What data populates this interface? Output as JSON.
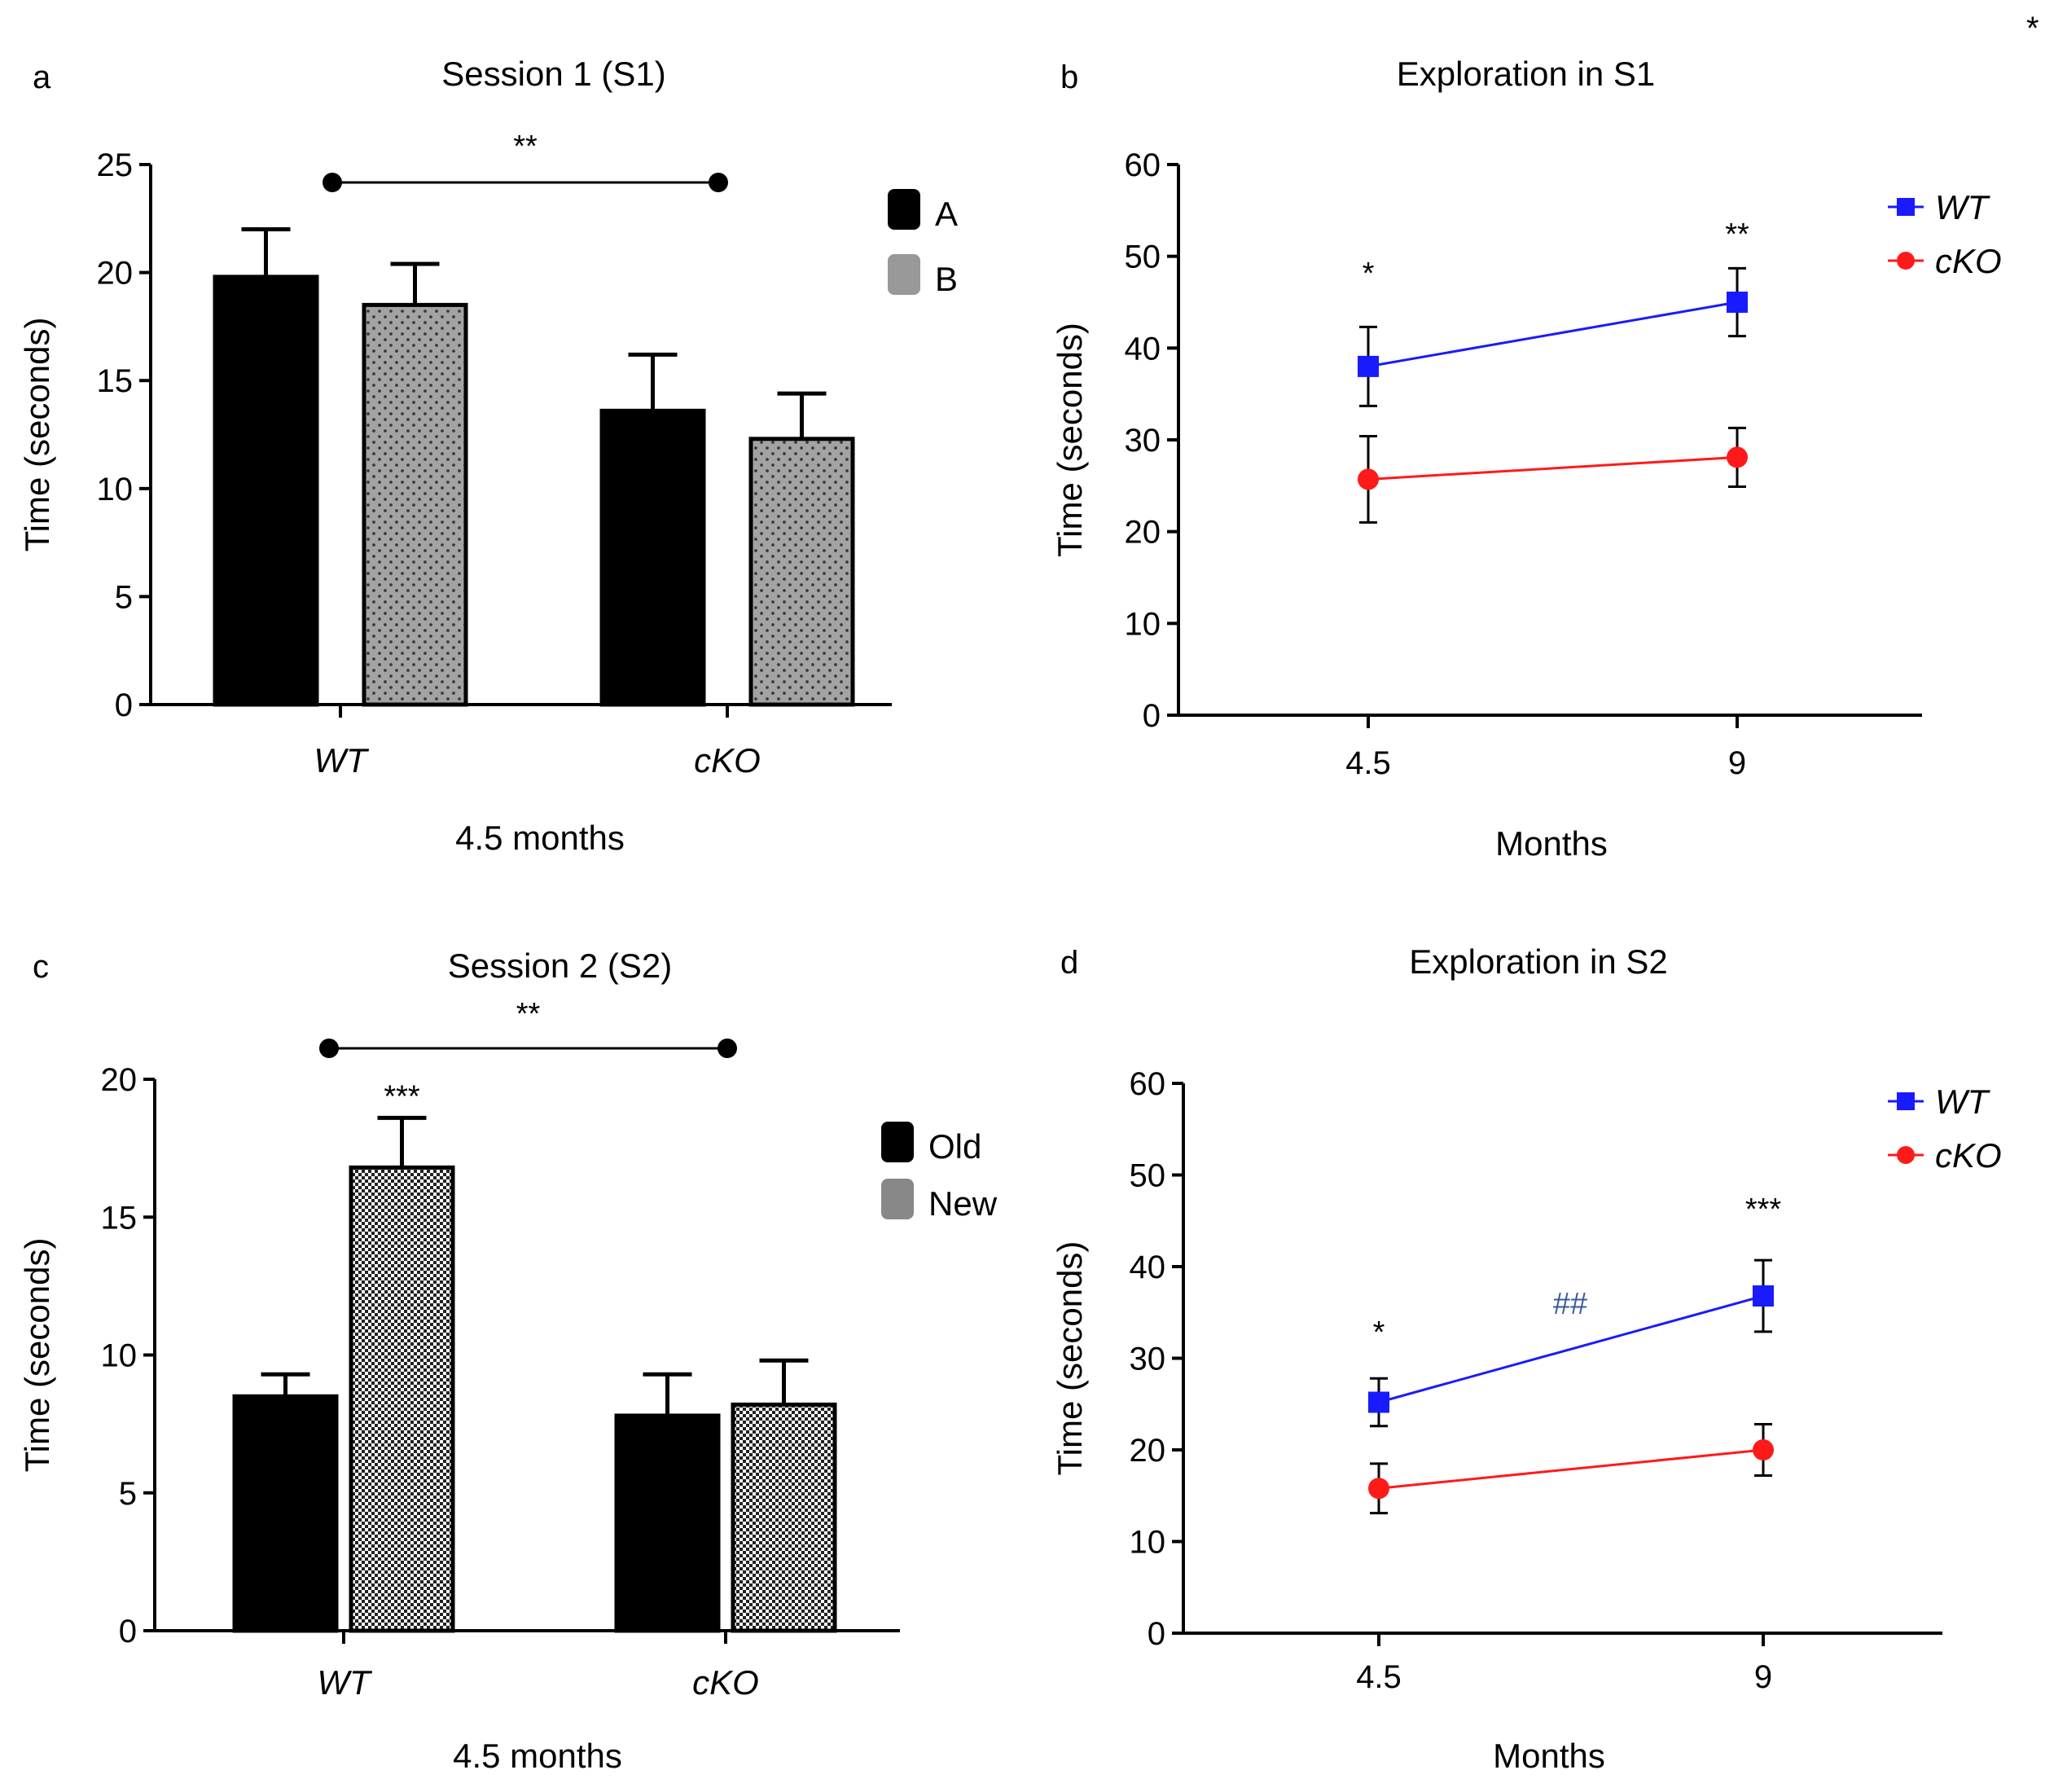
{
  "corner_mark": "*",
  "chart_data": [
    {
      "panel": "a",
      "type": "bar",
      "title": "Session 1 (S1)",
      "ylabel": "Time (seconds)",
      "xlabel": "4.5 months",
      "ylim": [
        0,
        25
      ],
      "yticks": [
        0,
        5,
        10,
        15,
        20,
        25
      ],
      "categories": [
        "WT",
        "cKO"
      ],
      "series": [
        {
          "name": "A",
          "color": "#000000",
          "pattern": "solid",
          "values": [
            19.8,
            13.6
          ],
          "errors": [
            2.2,
            2.6
          ]
        },
        {
          "name": "B",
          "color": "#999999",
          "pattern": "dots",
          "values": [
            18.5,
            12.3
          ],
          "errors": [
            1.9,
            2.1
          ]
        }
      ],
      "annotations": [
        {
          "text": "**",
          "type": "bracket",
          "from": 0,
          "to": 1
        }
      ]
    },
    {
      "panel": "b",
      "type": "line",
      "title": "Exploration in S1",
      "ylabel": "Time (seconds)",
      "xlabel": "Months",
      "ylim": [
        0,
        60
      ],
      "yticks": [
        0,
        10,
        20,
        30,
        40,
        50,
        60
      ],
      "x": [
        "4.5",
        "9"
      ],
      "series": [
        {
          "name": "WT",
          "color": "#1a1aff",
          "marker": "square",
          "values": [
            38,
            45
          ],
          "errors": [
            4.3,
            3.7
          ]
        },
        {
          "name": "cKO",
          "color": "#ff1a1a",
          "marker": "circle",
          "values": [
            25.7,
            28.1
          ],
          "errors": [
            4.7,
            3.2
          ]
        }
      ],
      "annotations": [
        {
          "text": "*",
          "x_index": 0
        },
        {
          "text": "**",
          "x_index": 1
        }
      ]
    },
    {
      "panel": "c",
      "type": "bar",
      "title": "Session 2 (S2)",
      "ylabel": "Time (seconds)",
      "xlabel": "4.5 months",
      "ylim": [
        0,
        20
      ],
      "yticks": [
        0,
        5,
        10,
        15,
        20
      ],
      "categories": [
        "WT",
        "cKO"
      ],
      "series": [
        {
          "name": "Old",
          "color": "#000000",
          "pattern": "solid",
          "values": [
            8.5,
            7.8
          ],
          "errors": [
            0.8,
            1.5
          ]
        },
        {
          "name": "New",
          "color": "#888888",
          "pattern": "checker",
          "values": [
            16.8,
            8.2
          ],
          "errors": [
            1.8,
            1.6
          ]
        }
      ],
      "annotations": [
        {
          "text": "***",
          "type": "bar",
          "category_index": 0,
          "series_index": 1
        },
        {
          "text": "**",
          "type": "bracket",
          "from": 0,
          "to": 1
        }
      ]
    },
    {
      "panel": "d",
      "type": "line",
      "title": "Exploration in S2",
      "ylabel": "Time (seconds)",
      "xlabel": "Months",
      "ylim": [
        0,
        60
      ],
      "yticks": [
        0,
        10,
        20,
        30,
        40,
        50,
        60
      ],
      "x": [
        "4.5",
        "9"
      ],
      "series": [
        {
          "name": "WT",
          "color": "#1a1aff",
          "marker": "square",
          "values": [
            25.2,
            36.8
          ],
          "errors": [
            2.6,
            3.9
          ]
        },
        {
          "name": "cKO",
          "color": "#ff1a1a",
          "marker": "circle",
          "values": [
            15.8,
            20.0
          ],
          "errors": [
            2.7,
            2.8
          ]
        }
      ],
      "annotations": [
        {
          "text": "*",
          "x_index": 0
        },
        {
          "text": "***",
          "x_index": 1
        },
        {
          "text": "##",
          "type": "between",
          "color": "#3a5a9a"
        }
      ]
    }
  ]
}
